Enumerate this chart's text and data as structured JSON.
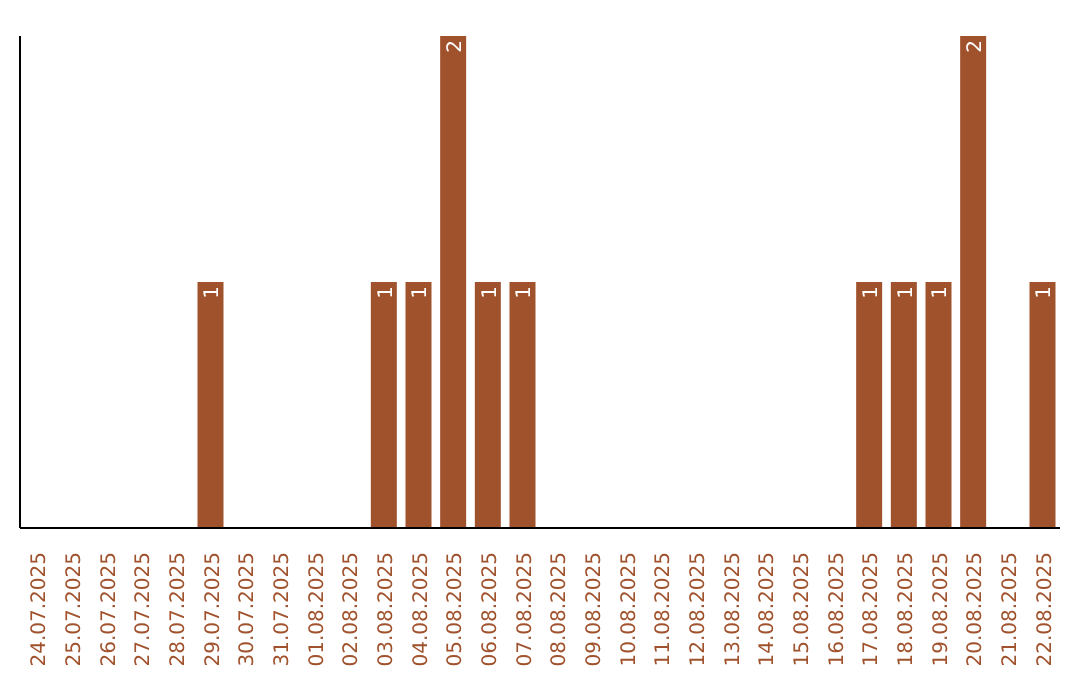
{
  "chart_data": {
    "type": "bar",
    "categories": [
      "24.07.2025",
      "25.07.2025",
      "26.07.2025",
      "27.07.2025",
      "28.07.2025",
      "29.07.2025",
      "30.07.2025",
      "31.07.2025",
      "01.08.2025",
      "02.08.2025",
      "03.08.2025",
      "04.08.2025",
      "05.08.2025",
      "06.08.2025",
      "07.08.2025",
      "08.08.2025",
      "09.08.2025",
      "10.08.2025",
      "11.08.2025",
      "12.08.2025",
      "13.08.2025",
      "14.08.2025",
      "15.08.2025",
      "16.08.2025",
      "17.08.2025",
      "18.08.2025",
      "19.08.2025",
      "20.08.2025",
      "21.08.2025",
      "22.08.2025"
    ],
    "values": [
      0,
      0,
      0,
      0,
      0,
      1,
      0,
      0,
      0,
      0,
      1,
      1,
      2,
      1,
      1,
      0,
      0,
      0,
      0,
      0,
      0,
      0,
      0,
      0,
      1,
      1,
      1,
      2,
      0,
      1
    ],
    "value_labels": [
      null,
      null,
      null,
      null,
      null,
      "1",
      null,
      null,
      null,
      null,
      "1",
      "1",
      "2",
      "1",
      "1",
      null,
      null,
      null,
      null,
      null,
      null,
      null,
      null,
      null,
      "1",
      "1",
      "1",
      "2",
      null,
      "1"
    ],
    "color": "#a0522d",
    "ylim": [
      0,
      2
    ],
    "tick_labels": "x",
    "grid": false,
    "legend": false
  }
}
